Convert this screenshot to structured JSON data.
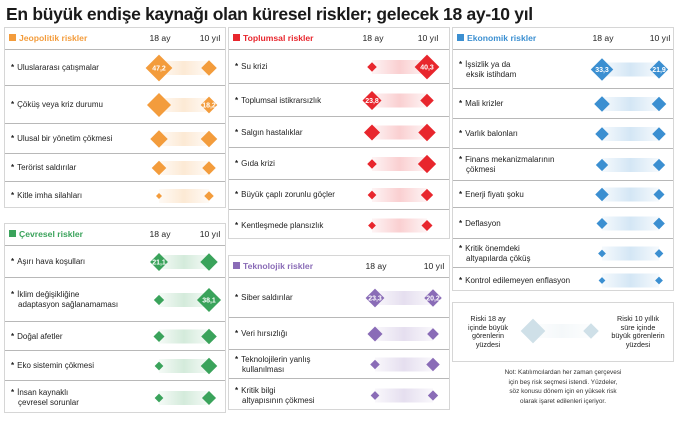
{
  "title": "En büyük endişe kaynağı olan küresel riskler; gelecek 18 ay-10 yıl",
  "columns": {
    "near": "18 ay",
    "far": "10 yıl"
  },
  "colors": {
    "jeopolitik": "#f39c3c",
    "toplumsal": "#e8262d",
    "ekonomik": "#3b8fd1",
    "cevresel": "#3aa35b",
    "teknolojik": "#8a6cb7",
    "legend": "#cfe0e8"
  },
  "chart_data": {
    "type": "table",
    "value_unit": "percent of respondents",
    "panels": [
      {
        "key": "jeopolitik",
        "name": "Jeopolitik riskler",
        "rows": [
          {
            "label": [
              "Uluslararası çatışmalar"
            ],
            "near": 47.2,
            "far": 16,
            "near_label": "47,2",
            "far_label": ""
          },
          {
            "label": [
              "Çöküş veya kriz durumu"
            ],
            "near": 38,
            "far": 18.2,
            "near_label": "",
            "far_label": "18,2"
          },
          {
            "label": [
              "Ulusal bir yönetim çökmesi"
            ],
            "near": 20,
            "far": 18,
            "near_label": "",
            "far_label": ""
          },
          {
            "label": [
              "Terörist saldırılar"
            ],
            "near": 14,
            "far": 12,
            "near_label": "",
            "far_label": ""
          },
          {
            "label": [
              "Kitle imha silahları"
            ],
            "near": 2,
            "far": 6,
            "near_label": "",
            "far_label": ""
          }
        ]
      },
      {
        "key": "cevresel",
        "name": "Çevresel riskler",
        "rows": [
          {
            "label": [
              "Aşırı hava koşulları"
            ],
            "near": 21.1,
            "far": 20,
            "near_label": "21,1",
            "far_label": ""
          },
          {
            "label": [
              "İklim değişikliğine",
              "adaptasyon sağlanamaması"
            ],
            "near": 7,
            "far": 38.1,
            "near_label": "",
            "far_label": "38,1"
          },
          {
            "label": [
              "Doğal afetler"
            ],
            "near": 8,
            "far": 16,
            "near_label": "",
            "far_label": ""
          },
          {
            "label": [
              "Eko sistemin çökmesi"
            ],
            "near": 5,
            "far": 18,
            "near_label": "",
            "far_label": ""
          },
          {
            "label": [
              "İnsan kaynaklı",
              "çevresel sorunlar"
            ],
            "near": 5,
            "far": 13,
            "near_label": "",
            "far_label": ""
          }
        ]
      },
      {
        "key": "toplumsal",
        "name": "Toplumsal riskler",
        "rows": [
          {
            "label": [
              "Su krizi"
            ],
            "near": 6,
            "far": 40.3,
            "near_label": "",
            "far_label": "40,3"
          },
          {
            "label": [
              "Toplumsal istikrarsızlık"
            ],
            "near": 23.8,
            "far": 12,
            "near_label": "23,8",
            "far_label": ""
          },
          {
            "label": [
              "Salgın hastalıklar"
            ],
            "near": 17,
            "far": 20,
            "near_label": "",
            "far_label": ""
          },
          {
            "label": [
              "Gıda krizi"
            ],
            "near": 6,
            "far": 22,
            "near_label": "",
            "far_label": ""
          },
          {
            "label": [
              "Büyük çaplı zorunlu göçler"
            ],
            "near": 5,
            "far": 10,
            "near_label": "",
            "far_label": ""
          },
          {
            "label": [
              "Kentleşmede plansızlık"
            ],
            "near": 4,
            "far": 8,
            "near_label": "",
            "far_label": ""
          }
        ]
      },
      {
        "key": "teknolojik",
        "name": "Teknolojik riskler",
        "rows": [
          {
            "label": [
              "Siber saldırılar"
            ],
            "near": 23.3,
            "far": 20.2,
            "near_label": "23,3",
            "far_label": "20,2"
          },
          {
            "label": [
              "Veri hırsızlığı"
            ],
            "near": 15,
            "far": 9,
            "near_label": "",
            "far_label": ""
          },
          {
            "label": [
              "Teknolojilerin yanlış",
              "kullanılması"
            ],
            "near": 6,
            "far": 12,
            "near_label": "",
            "far_label": ""
          },
          {
            "label": [
              "Kritik bilgi",
              "altyapısının çökmesi"
            ],
            "near": 5,
            "far": 7,
            "near_label": "",
            "far_label": ""
          }
        ]
      },
      {
        "key": "ekonomik",
        "name": "Ekonomik riskler",
        "rows": [
          {
            "label": [
              "İşsizlik ya da",
              "eksik istihdam"
            ],
            "near": 33.3,
            "far": 21.9,
            "near_label": "33,3",
            "far_label": "21,9"
          },
          {
            "label": [
              "Mali krizler"
            ],
            "near": 16,
            "far": 14,
            "near_label": "",
            "far_label": ""
          },
          {
            "label": [
              "Varlık balonları"
            ],
            "near": 12,
            "far": 12,
            "near_label": "",
            "far_label": ""
          },
          {
            "label": [
              "Finans mekanizmalarının",
              "çökmesi"
            ],
            "near": 10,
            "far": 10,
            "near_label": "",
            "far_label": ""
          },
          {
            "label": [
              "Enerji fiyatı şoku"
            ],
            "near": 12,
            "far": 8,
            "near_label": "",
            "far_label": ""
          },
          {
            "label": [
              "Deflasyon"
            ],
            "near": 8,
            "far": 9,
            "near_label": "",
            "far_label": ""
          },
          {
            "label": [
              "Kritik önemdeki",
              "altyapılarda çöküş"
            ],
            "near": 4,
            "far": 5,
            "near_label": "",
            "far_label": ""
          },
          {
            "label": [
              "Kontrol edilemeyen enflasyon"
            ],
            "near": 3,
            "far": 4,
            "near_label": "",
            "far_label": ""
          }
        ]
      }
    ]
  },
  "legend": {
    "left": [
      "Riski 18 ay",
      "içinde büyük",
      "görenlerin",
      "yüzdesi"
    ],
    "right": [
      "Riski 10 yıllık",
      "süre içinde",
      "büyük görenlerin",
      "yüzdesi"
    ]
  },
  "note": [
    "Not: Katılımcılardan her zaman çerçevesi",
    "için beş risk seçmesi istendi. Yüzdeler,",
    "söz konusu dönem için en yüksek risk",
    "olarak işaret edilenleri içeriyor."
  ]
}
